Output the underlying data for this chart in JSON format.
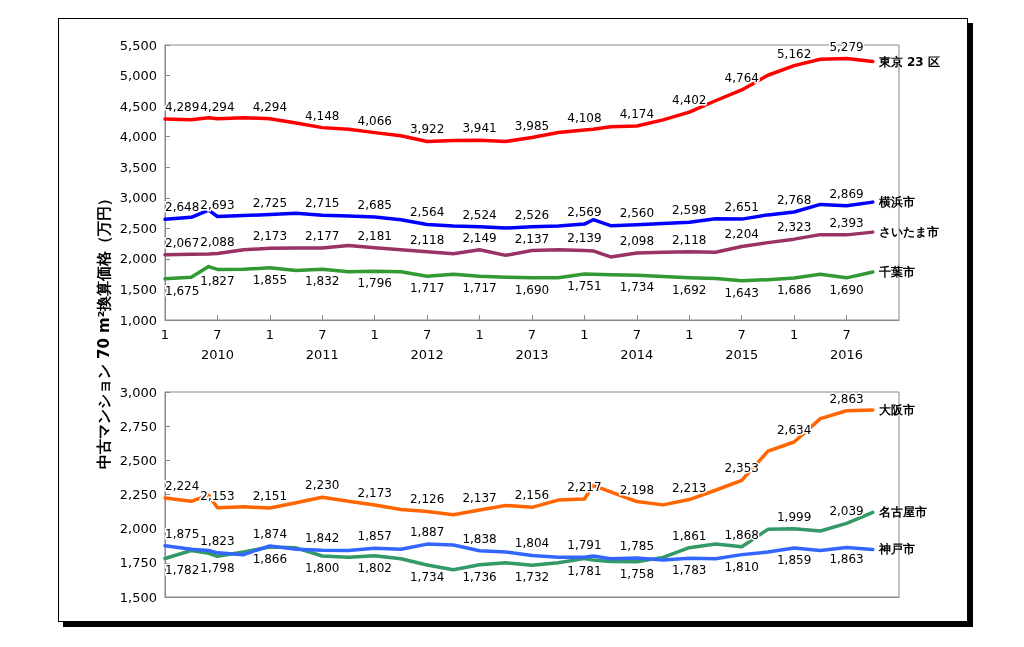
{
  "chart_data": [
    {
      "type": "line",
      "ylabel": "中古マンション 70 m²換算価格（万円）",
      "x": [
        "2010-01",
        "2010-04",
        "2010-06",
        "2010-07",
        "2010-10",
        "2011-01",
        "2011-04",
        "2011-07",
        "2011-10",
        "2012-01",
        "2012-04",
        "2012-07",
        "2012-10",
        "2013-01",
        "2013-04",
        "2013-07",
        "2013-10",
        "2014-01",
        "2014-02",
        "2014-04",
        "2014-07",
        "2014-10",
        "2015-01",
        "2015-04",
        "2015-07",
        "2015-10",
        "2016-01",
        "2016-04",
        "2016-07",
        "2016-10"
      ],
      "xlim": [
        "2010-01",
        "2017-01"
      ],
      "xticks": [
        {
          "value": "2010-01",
          "label": "1"
        },
        {
          "value": "2010-07",
          "label": "7"
        },
        {
          "value": "2011-01",
          "label": "1"
        },
        {
          "value": "2011-07",
          "label": "7"
        },
        {
          "value": "2012-01",
          "label": "1"
        },
        {
          "value": "2012-07",
          "label": "7"
        },
        {
          "value": "2013-01",
          "label": "1"
        },
        {
          "value": "2013-07",
          "label": "7"
        },
        {
          "value": "2014-01",
          "label": "1"
        },
        {
          "value": "2014-07",
          "label": "7"
        },
        {
          "value": "2015-01",
          "label": "1"
        },
        {
          "value": "2015-07",
          "label": "7"
        },
        {
          "value": "2016-01",
          "label": "1"
        },
        {
          "value": "2016-07",
          "label": "7"
        }
      ],
      "x2lim": [
        "2010-01",
        "2017-01"
      ],
      "x2ticks": [
        {
          "value": "2010-07",
          "label": "2010"
        },
        {
          "value": "2011-07",
          "label": "2011"
        },
        {
          "value": "2012-07",
          "label": "2012"
        },
        {
          "value": "2013-07",
          "label": "2013"
        },
        {
          "value": "2014-07",
          "label": "2014"
        },
        {
          "value": "2015-07",
          "label": "2015"
        },
        {
          "value": "2016-07",
          "label": "2016"
        }
      ],
      "ylim": [
        1000,
        5500
      ],
      "yticks": [
        {
          "value": 1000,
          "label": "1,000"
        },
        {
          "value": 1500,
          "label": "1,500"
        },
        {
          "value": 2000,
          "label": "2,000"
        },
        {
          "value": 2500,
          "label": "2,500"
        },
        {
          "value": 3000,
          "label": "3,000"
        },
        {
          "value": 3500,
          "label": "3,500"
        },
        {
          "value": 4000,
          "label": "4,000"
        },
        {
          "value": 4500,
          "label": "4,500"
        },
        {
          "value": 5000,
          "label": "5,000"
        },
        {
          "value": 5500,
          "label": "5,500"
        }
      ],
      "marker": "none",
      "series": [
        {
          "name": "東京 23 区",
          "color": "#ff0000",
          "values": [
            4289,
            4276,
            4310,
            4294,
            4310,
            4294,
            4224,
            4148,
            4120,
            4066,
            4016,
            3922,
            3938,
            3941,
            3922,
            3985,
            4067,
            4108,
            4120,
            4161,
            4174,
            4275,
            4402,
            4588,
            4764,
            5005,
            5162,
            5266,
            5279,
            5229
          ],
          "value_labels": [
            "4,289",
            null,
            null,
            "4,294",
            null,
            "4,294",
            null,
            "4,148",
            null,
            "4,066",
            null,
            "3,922",
            null,
            "3,941",
            null,
            "3,985",
            null,
            "4,108",
            null,
            null,
            "4,174",
            null,
            "4,402",
            null,
            "4,764",
            null,
            "5,162",
            null,
            "5,279",
            null
          ]
        },
        {
          "name": "横浜市",
          "color": "#0000ff",
          "values": [
            2648,
            2680,
            2797,
            2693,
            2709,
            2725,
            2745,
            2715,
            2700,
            2685,
            2641,
            2564,
            2537,
            2524,
            2505,
            2526,
            2540,
            2569,
            2641,
            2543,
            2560,
            2580,
            2598,
            2657,
            2651,
            2720,
            2768,
            2892,
            2869,
            2929
          ],
          "value_labels": [
            "2,648",
            null,
            null,
            "2,693",
            null,
            "2,725",
            null,
            "2,715",
            null,
            "2,685",
            null,
            "2,564",
            null,
            "2,524",
            null,
            "2,526",
            null,
            "2,569",
            null,
            null,
            "2,560",
            null,
            "2,598",
            null,
            "2,651",
            null,
            "2,768",
            null,
            "2,869",
            null
          ]
        },
        {
          "name": "さいたま市",
          "color": "#993366",
          "values": [
            2067,
            2075,
            2080,
            2088,
            2150,
            2173,
            2180,
            2177,
            2219,
            2181,
            2150,
            2118,
            2085,
            2149,
            2058,
            2137,
            2150,
            2139,
            2130,
            2032,
            2098,
            2110,
            2118,
            2109,
            2204,
            2266,
            2323,
            2397,
            2393,
            2438
          ],
          "value_labels": [
            "2,067",
            null,
            null,
            "2,088",
            null,
            "2,173",
            null,
            "2,177",
            null,
            "2,181",
            null,
            "2,118",
            null,
            "2,149",
            null,
            "2,137",
            null,
            "2,139",
            null,
            null,
            "2,098",
            null,
            "2,118",
            null,
            "2,204",
            null,
            "2,323",
            null,
            "2,393",
            null
          ]
        },
        {
          "name": "千葉市",
          "color": "#339933",
          "values": [
            1675,
            1700,
            1874,
            1827,
            1830,
            1855,
            1810,
            1832,
            1790,
            1796,
            1790,
            1717,
            1750,
            1717,
            1700,
            1690,
            1690,
            1751,
            1750,
            1740,
            1734,
            1710,
            1692,
            1680,
            1643,
            1660,
            1686,
            1750,
            1690,
            1786
          ],
          "value_labels": [
            "1,675",
            null,
            null,
            "1,827",
            null,
            "1,855",
            null,
            "1,832",
            null,
            "1,796",
            null,
            "1,717",
            null,
            "1,717",
            null,
            "1,690",
            null,
            "1,751",
            null,
            null,
            "1,734",
            null,
            "1,692",
            null,
            "1,643",
            null,
            "1,686",
            null,
            "1,690",
            null
          ]
        }
      ]
    },
    {
      "type": "line",
      "x": [
        "2010-01",
        "2010-04",
        "2010-06",
        "2010-07",
        "2010-10",
        "2011-01",
        "2011-04",
        "2011-07",
        "2011-10",
        "2012-01",
        "2012-04",
        "2012-07",
        "2012-10",
        "2013-01",
        "2013-04",
        "2013-07",
        "2013-10",
        "2014-01",
        "2014-02",
        "2014-04",
        "2014-07",
        "2014-10",
        "2015-01",
        "2015-04",
        "2015-07",
        "2015-10",
        "2016-01",
        "2016-04",
        "2016-07",
        "2016-10"
      ],
      "xlim": [
        "2010-01",
        "2017-01"
      ],
      "ylim": [
        1500,
        3000
      ],
      "yticks": [
        {
          "value": 1500,
          "label": "1,500"
        },
        {
          "value": 1750,
          "label": "1,750"
        },
        {
          "value": 2000,
          "label": "2,000"
        },
        {
          "value": 2250,
          "label": "2,250"
        },
        {
          "value": 2500,
          "label": "2,500"
        },
        {
          "value": 2750,
          "label": "2,750"
        },
        {
          "value": 3000,
          "label": "3,000"
        }
      ],
      "tick_labels": "y",
      "marker": "none",
      "series": [
        {
          "name": "大阪市",
          "color": "#ff6600",
          "values": [
            2224,
            2200,
            2245,
            2153,
            2160,
            2151,
            2190,
            2230,
            2200,
            2173,
            2140,
            2126,
            2102,
            2137,
            2170,
            2156,
            2209,
            2217,
            2317,
            2269,
            2198,
            2174,
            2213,
            2281,
            2353,
            2567,
            2634,
            2805,
            2863,
            2869
          ],
          "value_labels": [
            "2,224",
            null,
            null,
            "2,153",
            null,
            "2,151",
            null,
            "2,230",
            null,
            "2,173",
            null,
            "2,126",
            null,
            "2,137",
            null,
            "2,156",
            null,
            "2,217",
            null,
            null,
            "2,198",
            null,
            "2,213",
            null,
            "2,353",
            null,
            "2,634",
            null,
            "2,863",
            null
          ]
        },
        {
          "name": "名古屋市",
          "color": "#339966",
          "values": [
            1782,
            1840,
            1820,
            1798,
            1830,
            1866,
            1860,
            1800,
            1790,
            1802,
            1780,
            1734,
            1700,
            1736,
            1750,
            1732,
            1750,
            1781,
            1770,
            1760,
            1758,
            1790,
            1861,
            1888,
            1868,
            1995,
            1999,
            1983,
            2039,
            2119
          ],
          "value_labels": [
            "1,782",
            null,
            null,
            "1,798",
            null,
            "1,866",
            null,
            "1,800",
            null,
            "1,802",
            null,
            "1,734",
            null,
            "1,736",
            null,
            "1,732",
            null,
            "1,781",
            null,
            null,
            "1,758",
            null,
            "1,861",
            null,
            "1,868",
            null,
            "1,999",
            null,
            "2,039",
            null
          ]
        },
        {
          "name": "神戸市",
          "color": "#3366ff",
          "values": [
            1875,
            1850,
            1840,
            1823,
            1810,
            1874,
            1850,
            1842,
            1840,
            1857,
            1850,
            1887,
            1880,
            1838,
            1830,
            1804,
            1790,
            1791,
            1800,
            1780,
            1785,
            1770,
            1783,
            1780,
            1810,
            1829,
            1859,
            1841,
            1863,
            1848
          ],
          "value_labels": [
            "1,875",
            null,
            null,
            "1,823",
            null,
            "1,874",
            null,
            "1,842",
            null,
            "1,857",
            null,
            "1,887",
            null,
            "1,838",
            null,
            "1,804",
            null,
            "1,791",
            null,
            null,
            "1,785",
            null,
            "1,783",
            null,
            "1,810",
            null,
            "1,859",
            null,
            "1,863",
            null
          ]
        }
      ]
    }
  ]
}
